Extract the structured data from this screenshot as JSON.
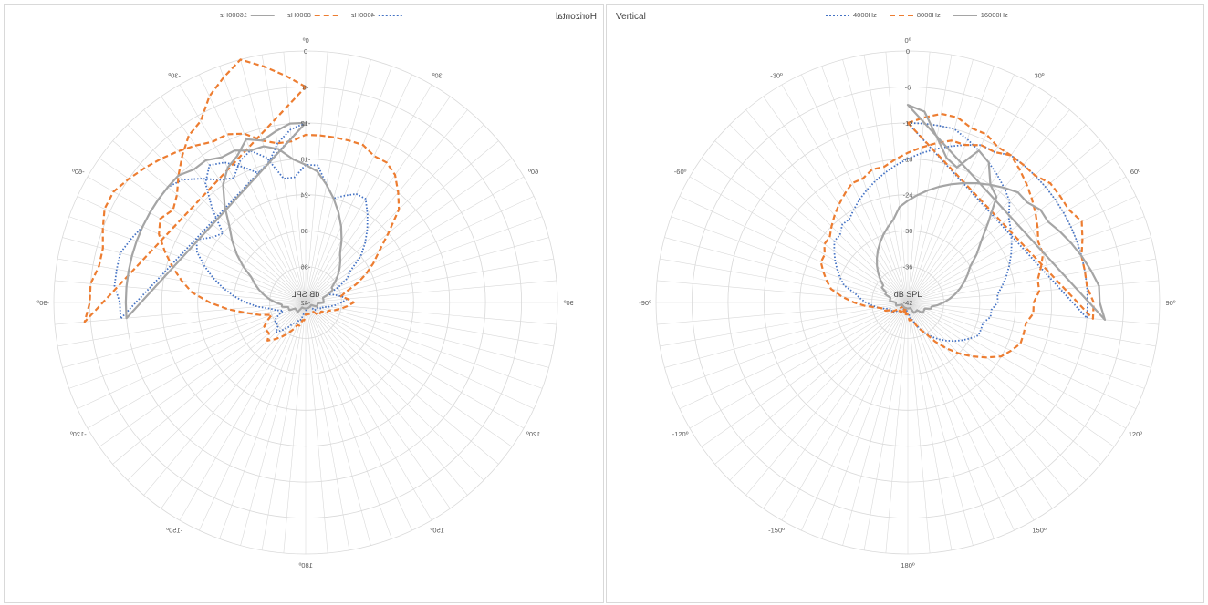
{
  "colors": {
    "f4000": "#4472c4",
    "f8000": "#ed7d31",
    "f16000": "#a5a5a5",
    "grid": "#d9d9d9",
    "text": "#595959"
  },
  "chart_data": [
    {
      "type": "polar-line",
      "title": "Horizontal",
      "mirrored": true,
      "radial_label": "dB SPL",
      "r_range": [
        -42,
        0
      ],
      "r_ticks": [
        "0",
        "-6",
        "-12",
        "-18",
        "-24",
        "-30",
        "-36",
        "-42"
      ],
      "angle_labels": [
        "0º",
        "-30º",
        "-60º",
        "-90º",
        "-120º",
        "-150º",
        "180º",
        "150º",
        "120º",
        "90º",
        "60º",
        "30º"
      ],
      "angle_step_deg": 5,
      "legend": [
        "4000Hz",
        "8000Hz",
        "16000Hz"
      ],
      "series": [
        {
          "name": "4000Hz",
          "key": "f4000",
          "style": "dotted",
          "values": [
            -12,
            -13,
            -15,
            -18,
            -19,
            -17,
            -15,
            -14,
            -16,
            -20,
            -24,
            -23,
            -21,
            -22,
            -24,
            -26,
            -28,
            -30,
            -32,
            -34,
            -36,
            -37,
            -38,
            -37,
            -36,
            -36,
            -36,
            -35,
            -36,
            -37,
            -38,
            -38,
            -39,
            -39,
            -40,
            -40,
            -40,
            -41,
            -41,
            -41,
            -41,
            -41,
            -41,
            -41,
            -41,
            -41,
            -40,
            -40,
            -40,
            -40,
            -39,
            -39,
            -38,
            -37,
            -36,
            -35,
            -36,
            -37,
            -38,
            -36,
            -34,
            -33,
            -30,
            -28,
            -26,
            -24,
            -22,
            -22,
            -23,
            -24,
            -22,
            -19,
            -19,
            -21,
            -21,
            -17,
            -15,
            -16,
            -18,
            -17,
            -15,
            -13,
            -12,
            -12,
            -12,
            -12,
            -11,
            -10,
            -10,
            -10,
            -11,
            -11
          ]
        },
        {
          "name": "8000Hz",
          "key": "f8000",
          "style": "dashed",
          "values": [
            -6,
            -4,
            -2,
            0,
            -2,
            -4,
            -7,
            -8,
            -10,
            -12,
            -14,
            -15,
            -14,
            -15,
            -17,
            -19,
            -21,
            -23,
            -26,
            -29,
            -32,
            -34,
            -36,
            -35,
            -34,
            -34,
            -34,
            -33,
            -34,
            -35,
            -36,
            -37,
            -38,
            -38,
            -39,
            -39,
            -40,
            -40,
            -40,
            -40,
            -40,
            -40,
            -40,
            -40,
            -40,
            -39,
            -39,
            -39,
            -39,
            -38,
            -38,
            -37,
            -36,
            -35,
            -34,
            -35,
            -36,
            -35,
            -33,
            -31,
            -29,
            -27,
            -24,
            -20,
            -18,
            -16,
            -15,
            -15,
            -14,
            -14,
            -14,
            -14,
            -14,
            -15,
            -15,
            -14,
            -12,
            -11,
            -11,
            -10,
            -9,
            -8,
            -7,
            -6,
            -5,
            -5,
            -6,
            -7,
            -7,
            -6,
            -6,
            -5
          ]
        },
        {
          "name": "16000Hz",
          "key": "f16000",
          "style": "solid",
          "values": [
            -12,
            -12,
            -13,
            -14,
            -13,
            -15,
            -16,
            -18,
            -21,
            -24,
            -26,
            -28,
            -30,
            -32,
            -33,
            -34,
            -35,
            -36,
            -37,
            -38,
            -38,
            -39,
            -39,
            -39,
            -40,
            -40,
            -40,
            -40,
            -40,
            -41,
            -41,
            -41,
            -41,
            -41,
            -41,
            -41,
            -41,
            -41,
            -41,
            -41,
            -41,
            -41,
            -41,
            -41,
            -41,
            -41,
            -41,
            -41,
            -41,
            -41,
            -40,
            -40,
            -40,
            -40,
            -39,
            -39,
            -39,
            -39,
            -38,
            -37,
            -37,
            -36,
            -35,
            -34,
            -33,
            -32,
            -30,
            -28,
            -26,
            -24,
            -22,
            -20,
            -19,
            -18,
            -16,
            -15,
            -15,
            -14,
            -14,
            -13,
            -13,
            -12,
            -12,
            -12,
            -12,
            -12,
            -12,
            -12,
            -12,
            -12,
            -12,
            -12
          ]
        }
      ]
    },
    {
      "type": "polar-line",
      "title": "Vertical",
      "mirrored": false,
      "radial_label": "dB SPL",
      "r_range": [
        -42,
        0
      ],
      "r_ticks": [
        "0",
        "-6",
        "-12",
        "-18",
        "-24",
        "-30",
        "-36",
        "-42"
      ],
      "angle_labels": [
        "0º",
        "30º",
        "60º",
        "90º",
        "120º",
        "150º",
        "180º",
        "-150º",
        "-120º",
        "-90º",
        "-60º",
        "-30º"
      ],
      "angle_step_deg": 5,
      "legend": [
        "4000Hz",
        "8000Hz",
        "16000Hz"
      ],
      "series": [
        {
          "name": "4000Hz",
          "key": "f4000",
          "style": "dotted",
          "values": [
            -12,
            -12,
            -12,
            -12,
            -13,
            -14,
            -15,
            -16,
            -17,
            -18,
            -20,
            -21,
            -22,
            -23,
            -24,
            -25,
            -26,
            -27,
            -27,
            -28,
            -28,
            -29,
            -29,
            -29,
            -30,
            -31,
            -32,
            -33,
            -34,
            -35,
            -36,
            -37,
            -38,
            -39,
            -39,
            -40,
            -40,
            -40,
            -41,
            -41,
            -41,
            -41,
            -41,
            -40,
            -40,
            -40,
            -40,
            -39,
            -39,
            -39,
            -39,
            -38,
            -37,
            -36,
            -35,
            -34,
            -33,
            -31,
            -30,
            -29,
            -28,
            -27,
            -26,
            -26,
            -25,
            -25,
            -24,
            -23,
            -22,
            -21,
            -20,
            -19,
            -18,
            -17,
            -16,
            -15,
            -14,
            -13,
            -13,
            -12,
            -12,
            -12,
            -12,
            -12,
            -12,
            -12,
            -12,
            -12,
            -12,
            -12,
            -12,
            -12
          ]
        },
        {
          "name": "8000Hz",
          "key": "f8000",
          "style": "dashed",
          "values": [
            -12,
            -11,
            -10,
            -10,
            -11,
            -11,
            -12,
            -12,
            -13,
            -14,
            -15,
            -16,
            -17,
            -18,
            -18,
            -19,
            -20,
            -20,
            -21,
            -21,
            -22,
            -22,
            -22,
            -23,
            -24,
            -26,
            -28,
            -30,
            -32,
            -34,
            -36,
            -37,
            -38,
            -39,
            -39,
            -39,
            -40,
            -40,
            -40,
            -41,
            -40,
            -40,
            -41,
            -40,
            -40,
            -40,
            -41,
            -40,
            -39,
            -39,
            -38,
            -38,
            -37,
            -35,
            -33,
            -31,
            -29,
            -28,
            -27,
            -26,
            -26,
            -25,
            -25,
            -24,
            -23,
            -22,
            -21,
            -20,
            -20,
            -19,
            -19,
            -18,
            -17,
            -16,
            -15,
            -14,
            -14,
            -13,
            -13,
            -12,
            -12,
            -12,
            -11,
            -11,
            -11,
            -10,
            -11,
            -12,
            -12,
            -12,
            -11,
            -11
          ]
        },
        {
          "name": "16000Hz",
          "key": "f16000",
          "style": "solid",
          "values": [
            -9,
            -10,
            -14,
            -17,
            -18,
            -14,
            -15,
            -18,
            -19,
            -23,
            -26,
            -28,
            -30,
            -31,
            -32,
            -33,
            -34,
            -35,
            -36,
            -37,
            -38,
            -38,
            -39,
            -39,
            -39,
            -39,
            -40,
            -40,
            -40,
            -40,
            -40,
            -41,
            -41,
            -41,
            -41,
            -41,
            -41,
            -41,
            -41,
            -41,
            -41,
            -41,
            -41,
            -41,
            -41,
            -41,
            -41,
            -41,
            -41,
            -41,
            -41,
            -40,
            -40,
            -40,
            -40,
            -39,
            -39,
            -39,
            -38,
            -38,
            -37,
            -37,
            -36,
            -35,
            -34,
            -33,
            -32,
            -31,
            -30,
            -29,
            -28,
            -26,
            -25,
            -24,
            -23,
            -22,
            -21,
            -20,
            -19,
            -18,
            -17,
            -16,
            -16,
            -15,
            -15,
            -14,
            -13,
            -12,
            -11,
            -10,
            -10,
            -9
          ]
        }
      ]
    }
  ]
}
